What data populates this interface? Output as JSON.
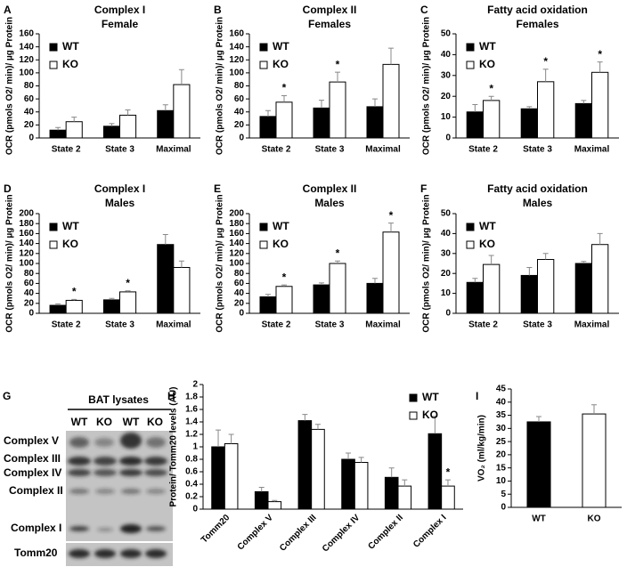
{
  "chart_data": [
    {
      "type": "bar",
      "panel": "A",
      "title": "Complex I",
      "subtitle": "Female",
      "ylabel": "OCR (pmols O2/ min)/ µg Protein",
      "categories": [
        "State 2",
        "State 3",
        "Maximal"
      ],
      "ylim": [
        0,
        160
      ],
      "yticks": [
        0,
        20,
        40,
        60,
        80,
        100,
        120,
        140,
        160
      ],
      "legend": "upper left",
      "series": [
        {
          "name": "WT",
          "color": "#000000",
          "values": [
            12,
            18,
            42
          ],
          "errors": [
            4,
            4,
            9
          ]
        },
        {
          "name": "KO",
          "color": "#ffffff",
          "values": [
            25,
            35,
            82
          ],
          "errors": [
            7,
            8,
            23
          ]
        }
      ]
    },
    {
      "type": "bar",
      "panel": "B",
      "title": "Complex II",
      "subtitle": "Females",
      "ylabel": "OCR (pmols O2/ min)/ µg Protein",
      "categories": [
        "State 2",
        "State 3",
        "Maximal"
      ],
      "ylim": [
        0,
        160
      ],
      "yticks": [
        0,
        20,
        40,
        60,
        80,
        100,
        120,
        140,
        160
      ],
      "legend": "upper left",
      "series": [
        {
          "name": "WT",
          "color": "#000000",
          "values": [
            33,
            46,
            48
          ],
          "errors": [
            9,
            12,
            12
          ]
        },
        {
          "name": "KO",
          "color": "#ffffff",
          "values": [
            55,
            86,
            113
          ],
          "errors": [
            10,
            15,
            25
          ],
          "labels": [
            "*",
            "*",
            null
          ]
        }
      ]
    },
    {
      "type": "bar",
      "panel": "C",
      "title": "Fatty acid oxidation",
      "subtitle": "Females",
      "ylabel": "OCR (pmols O2/ min)/ µg Protein",
      "categories": [
        "State 2",
        "State 3",
        "Maximal"
      ],
      "ylim": [
        0,
        50
      ],
      "yticks": [
        0,
        10,
        20,
        30,
        40,
        50
      ],
      "legend": "upper left",
      "series": [
        {
          "name": "WT",
          "color": "#000000",
          "values": [
            12.5,
            14,
            16.5
          ],
          "errors": [
            3.5,
            1,
            1.5
          ]
        },
        {
          "name": "KO",
          "color": "#ffffff",
          "values": [
            18,
            27,
            31.5
          ],
          "errors": [
            2,
            6,
            5
          ],
          "labels": [
            "*",
            "*",
            "*"
          ]
        }
      ]
    },
    {
      "type": "bar",
      "panel": "D",
      "title": "Complex I",
      "subtitle": "Males",
      "ylabel": "OCR (pmols O2/ min)/ µg Protein",
      "categories": [
        "State 2",
        "State 3",
        "Maximal"
      ],
      "ylim": [
        0,
        200
      ],
      "yticks": [
        0,
        20,
        40,
        60,
        80,
        100,
        120,
        140,
        160,
        180,
        200
      ],
      "legend": "upper left",
      "series": [
        {
          "name": "WT",
          "color": "#000000",
          "values": [
            16,
            27,
            138
          ],
          "errors": [
            3,
            3,
            20
          ]
        },
        {
          "name": "KO",
          "color": "#ffffff",
          "values": [
            26,
            43,
            92
          ],
          "errors": [
            2,
            2,
            13
          ],
          "labels": [
            "*",
            "*",
            null
          ]
        }
      ]
    },
    {
      "type": "bar",
      "panel": "E",
      "title": "Complex II",
      "subtitle": "Males",
      "ylabel": "OCR (pmols O2/ min)/ µg Protein",
      "categories": [
        "State 2",
        "State 3",
        "Maximal"
      ],
      "ylim": [
        0,
        200
      ],
      "yticks": [
        0,
        20,
        40,
        60,
        80,
        100,
        120,
        140,
        160,
        180,
        200
      ],
      "legend": "upper left",
      "series": [
        {
          "name": "WT",
          "color": "#000000",
          "values": [
            33,
            57,
            60
          ],
          "errors": [
            5,
            4,
            10
          ]
        },
        {
          "name": "KO",
          "color": "#ffffff",
          "values": [
            54,
            100,
            163
          ],
          "errors": [
            3,
            5,
            18
          ],
          "labels": [
            "*",
            "*",
            "*"
          ]
        }
      ]
    },
    {
      "type": "bar",
      "panel": "F",
      "title": "Fatty acid oxidation",
      "subtitle": "Males",
      "ylabel": "OCR (pmols O2/ min)/ µg Protein",
      "categories": [
        "State 2",
        "State 3",
        "Maximal"
      ],
      "ylim": [
        0,
        50
      ],
      "yticks": [
        0,
        10,
        20,
        30,
        40,
        50
      ],
      "legend": "upper left",
      "series": [
        {
          "name": "WT",
          "color": "#000000",
          "values": [
            15.5,
            19,
            25
          ],
          "errors": [
            2,
            4,
            1
          ]
        },
        {
          "name": "KO",
          "color": "#ffffff",
          "values": [
            24.5,
            27,
            34.5
          ],
          "errors": [
            4.5,
            3,
            5.5
          ]
        }
      ]
    },
    {
      "type": "bar",
      "panel": "H",
      "ylabel": "Protein/ Tomm20 levels (AU)",
      "categories": [
        "Tomm20",
        "Complex V",
        "Complex III",
        "Complex IV",
        "Complex II",
        "Complex I"
      ],
      "ylim": [
        0,
        2
      ],
      "yticks": [
        0,
        0.2,
        0.4,
        0.6,
        0.8,
        1,
        1.2,
        1.4,
        1.6,
        1.8,
        2
      ],
      "legend": "upper right",
      "series": [
        {
          "name": "WT",
          "color": "#000000",
          "values": [
            1.0,
            0.28,
            1.42,
            0.8,
            0.51,
            1.21
          ],
          "errors": [
            0.27,
            0.07,
            0.1,
            0.1,
            0.15,
            0.28
          ]
        },
        {
          "name": "KO",
          "color": "#ffffff",
          "values": [
            1.05,
            0.12,
            1.28,
            0.75,
            0.37,
            0.37
          ],
          "errors": [
            0.15,
            0.02,
            0.08,
            0.08,
            0.1,
            0.1
          ],
          "labels": [
            null,
            null,
            null,
            null,
            null,
            "*"
          ]
        }
      ]
    },
    {
      "type": "bar",
      "panel": "I",
      "ylabel": "VO₂ (ml/kg/min)",
      "categories": [
        "WT",
        "KO"
      ],
      "ylim": [
        0,
        45
      ],
      "yticks": [
        0,
        5,
        10,
        15,
        20,
        25,
        30,
        35,
        40,
        45
      ],
      "values": [
        32.5,
        35.5
      ],
      "errors": [
        2,
        3.5
      ],
      "colors": [
        "#000000",
        "#ffffff"
      ]
    }
  ],
  "blot": {
    "panel": "G",
    "title": "BAT lysates",
    "lanes": [
      "WT",
      "KO",
      "WT",
      "KO"
    ],
    "bands": [
      "Complex V",
      "Complex III",
      "Complex IV",
      "Complex II",
      "Complex I",
      "Tomm20"
    ]
  }
}
